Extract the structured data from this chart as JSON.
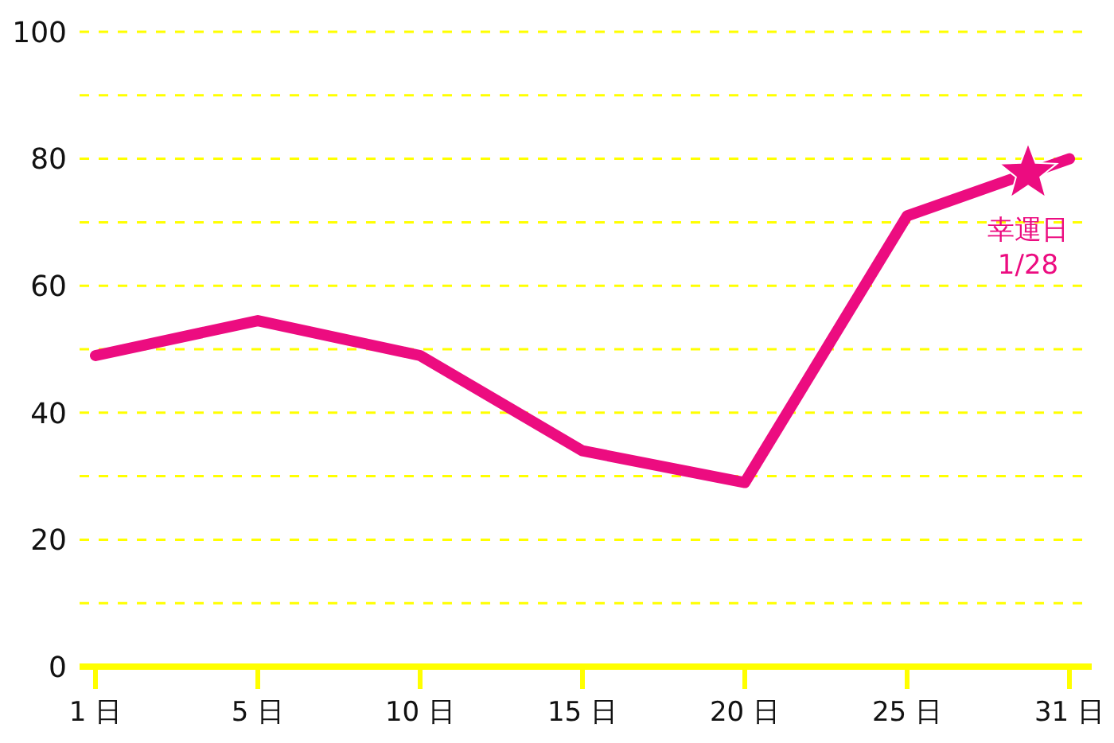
{
  "chart_data": {
    "type": "line",
    "categories": [
      "1 日",
      "5 日",
      "10 日",
      "15 日",
      "20 日",
      "25 日",
      "31 日"
    ],
    "series": [
      {
        "color": "#ec0c80",
        "values": [
          49,
          54.5,
          49,
          34,
          29,
          71,
          80
        ]
      }
    ],
    "ylim": [
      0,
      100
    ],
    "yticks": [
      0,
      {
        "value": 10,
        "label": null
      },
      20,
      {
        "value": 30,
        "label": null
      },
      40,
      {
        "value": 50,
        "label": null
      },
      60,
      {
        "value": 70,
        "label": null
      },
      80,
      {
        "value": 90,
        "label": null
      },
      100
    ],
    "grid": "y",
    "marker": "none",
    "line_style": "solid",
    "annotations": [
      "幸運日 1/28"
    ]
  }
}
